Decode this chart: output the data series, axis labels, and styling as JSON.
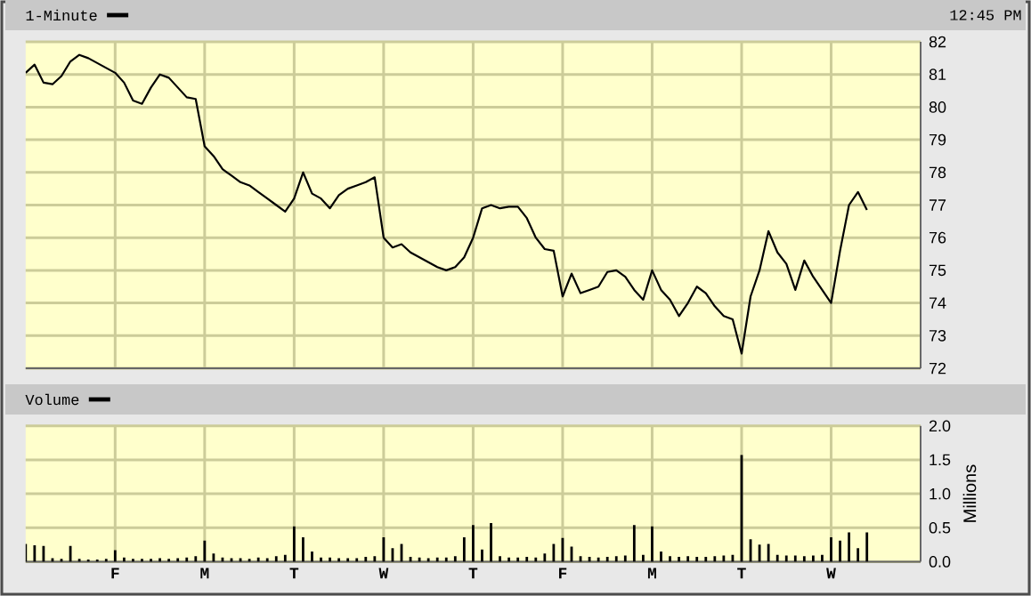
{
  "chart_data": [
    {
      "type": "line",
      "title": "1-Minute",
      "annotations": [
        "12:45 PM"
      ],
      "color": "#000000",
      "line_style": "solid",
      "grid": true,
      "tick_labels": "y",
      "categories": [
        null,
        null,
        null,
        null,
        null,
        null,
        null,
        null,
        null,
        null,
        null,
        null,
        null,
        null,
        null,
        null,
        null,
        null,
        null,
        null,
        null,
        null,
        null,
        null,
        null,
        null,
        null,
        null,
        null,
        null,
        null,
        null,
        null,
        null,
        null,
        null,
        null,
        null,
        null,
        null,
        null,
        null,
        null,
        null,
        null,
        null,
        null,
        null,
        null,
        null,
        null,
        null,
        null,
        null,
        null,
        null,
        null,
        null,
        null,
        null,
        null,
        null,
        null,
        null,
        null,
        null,
        null,
        null,
        null,
        null,
        null,
        null,
        null,
        null,
        null,
        null,
        null,
        null,
        null,
        null,
        null,
        null,
        null,
        null,
        null,
        null,
        null,
        null,
        null,
        null,
        null,
        null,
        null,
        null,
        null,
        null,
        null,
        null,
        null,
        null,
        null
      ],
      "values": [
        81.05,
        81.3,
        80.75,
        80.7,
        80.95,
        81.4,
        81.6,
        81.5,
        81.35,
        81.2,
        81.05,
        80.75,
        80.2,
        80.1,
        80.6,
        81.0,
        80.9,
        80.6,
        80.3,
        80.25,
        78.8,
        78.5,
        78.1,
        77.9,
        77.7,
        77.6,
        77.4,
        77.2,
        77.0,
        76.8,
        77.2,
        78.0,
        77.35,
        77.2,
        76.9,
        77.3,
        77.5,
        77.6,
        77.7,
        77.85,
        76.0,
        75.7,
        75.8,
        75.55,
        75.4,
        75.25,
        75.1,
        75.0,
        75.1,
        75.4,
        76.0,
        76.9,
        77.0,
        76.9,
        76.95,
        76.95,
        76.6,
        76.0,
        75.65,
        75.6,
        74.2,
        74.9,
        74.3,
        74.4,
        74.5,
        74.95,
        75.0,
        74.8,
        74.4,
        74.1,
        75.0,
        74.4,
        74.1,
        73.6,
        74.0,
        74.5,
        74.3,
        73.9,
        73.6,
        73.5,
        72.45,
        74.2,
        75.0,
        76.2,
        75.55,
        75.2,
        74.4,
        75.3,
        74.8,
        74.4,
        74.0,
        75.6,
        77.0,
        77.4,
        76.85,
        null,
        null,
        null,
        null,
        null,
        null
      ],
      "ylim": [
        72,
        82
      ],
      "yticks": [
        72,
        73,
        74,
        75,
        76,
        77,
        78,
        79,
        80,
        81,
        82
      ]
    },
    {
      "type": "bar",
      "title": "Volume",
      "ylabel": "Millions",
      "color": "#000000",
      "grid": true,
      "categories": [
        null,
        null,
        null,
        null,
        null,
        null,
        null,
        null,
        null,
        null,
        "F",
        null,
        null,
        null,
        null,
        null,
        null,
        null,
        null,
        null,
        "M",
        null,
        null,
        null,
        null,
        null,
        null,
        null,
        null,
        null,
        "T",
        null,
        null,
        null,
        null,
        null,
        null,
        null,
        null,
        null,
        "W",
        null,
        null,
        null,
        null,
        null,
        null,
        null,
        null,
        null,
        "T",
        null,
        null,
        null,
        null,
        null,
        null,
        null,
        null,
        null,
        "F",
        null,
        null,
        null,
        null,
        null,
        null,
        null,
        null,
        null,
        "M",
        null,
        null,
        null,
        null,
        null,
        null,
        null,
        null,
        null,
        "T",
        null,
        null,
        null,
        null,
        null,
        null,
        null,
        null,
        null,
        "W",
        null,
        null,
        null,
        null,
        null,
        null,
        null,
        null,
        null,
        null
      ],
      "values": [
        0.26,
        0.24,
        0.23,
        0.05,
        0.04,
        0.23,
        0.04,
        0.03,
        0.03,
        0.04,
        0.17,
        0.06,
        0.04,
        0.04,
        0.04,
        0.05,
        0.04,
        0.05,
        0.06,
        0.08,
        0.31,
        0.12,
        0.06,
        0.05,
        0.05,
        0.04,
        0.06,
        0.05,
        0.08,
        0.1,
        0.52,
        0.36,
        0.15,
        0.06,
        0.06,
        0.05,
        0.05,
        0.05,
        0.07,
        0.08,
        0.36,
        0.2,
        0.26,
        0.07,
        0.06,
        0.05,
        0.06,
        0.06,
        0.08,
        0.36,
        0.54,
        0.18,
        0.57,
        0.08,
        0.06,
        0.06,
        0.07,
        0.06,
        0.12,
        0.26,
        0.35,
        0.22,
        0.08,
        0.07,
        0.06,
        0.07,
        0.08,
        0.09,
        0.54,
        0.1,
        0.52,
        0.15,
        0.08,
        0.07,
        0.08,
        0.07,
        0.07,
        0.08,
        0.09,
        0.1,
        1.57,
        0.33,
        0.25,
        0.26,
        0.1,
        0.09,
        0.09,
        0.08,
        0.09,
        0.1,
        0.36,
        0.31,
        0.43,
        0.2,
        0.43,
        null,
        null,
        null,
        null,
        null,
        null
      ],
      "ylim": [
        0,
        2
      ],
      "yticks": [
        {
          "value": 0,
          "label": "0.0"
        },
        {
          "value": 0.5,
          "label": "0.5"
        },
        {
          "value": 1,
          "label": "1.0"
        },
        {
          "value": 1.5,
          "label": "1.5"
        },
        {
          "value": 2,
          "label": "2.0"
        }
      ]
    }
  ]
}
